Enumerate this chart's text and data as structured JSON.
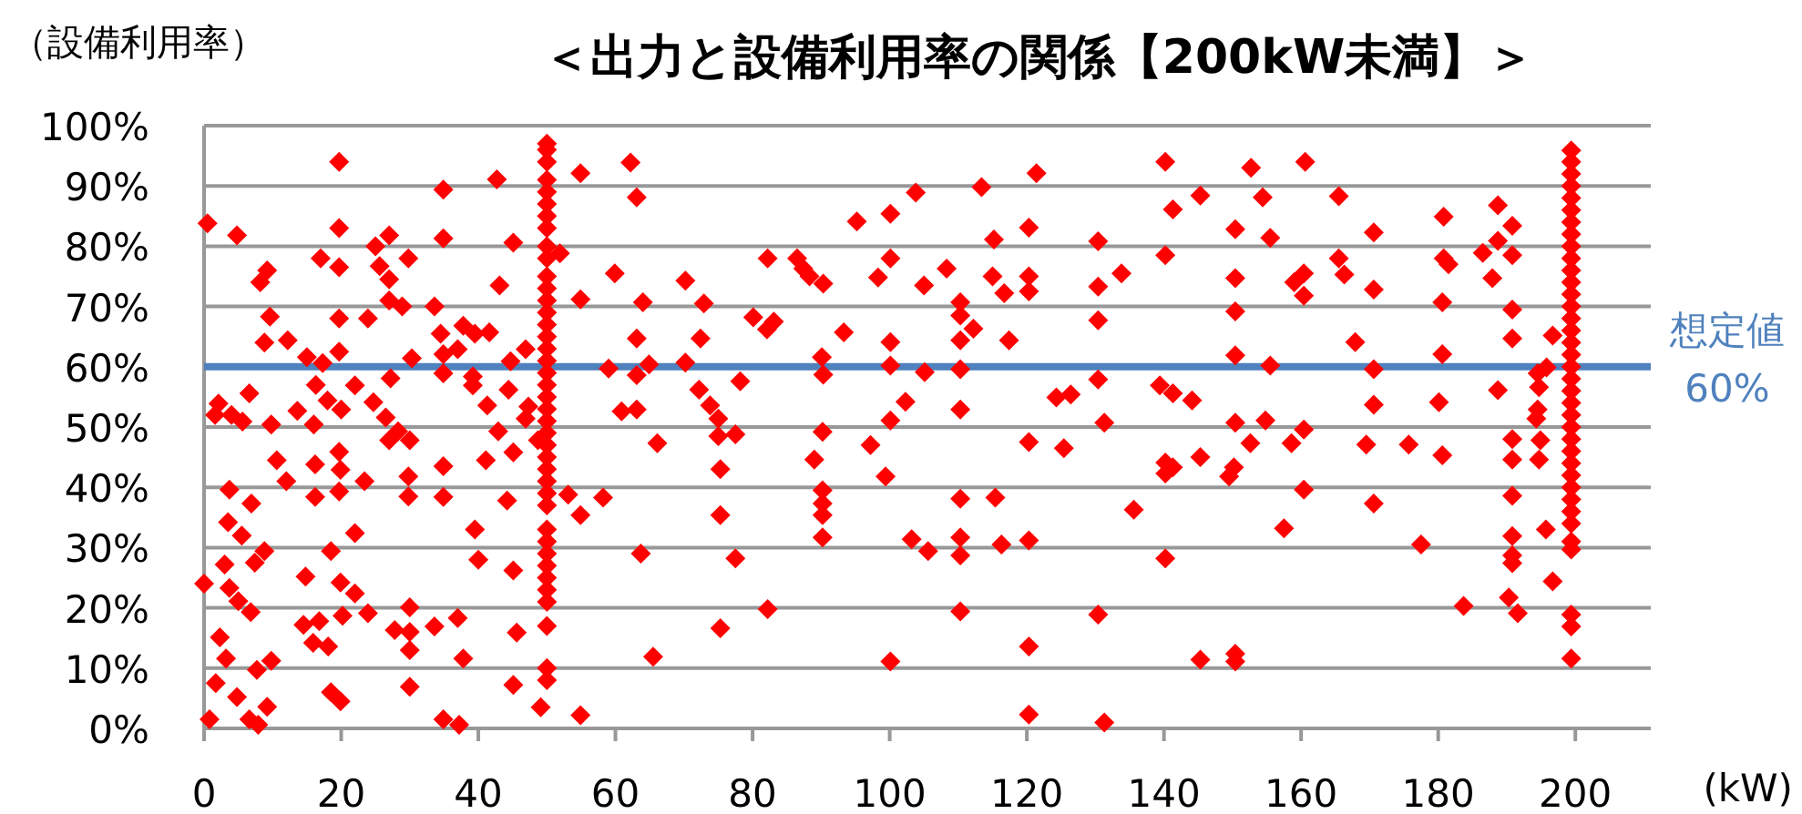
{
  "chart_data": {
    "type": "scatter",
    "title": "＜出力と設備利用率の関係【200kW未満】＞",
    "ylabel": "（設備利用率）",
    "xlabel": "(kW)",
    "color": "#ff0000",
    "marker": "diamond",
    "grid": "y",
    "xlim": [
      0,
      211
    ],
    "ylim": [
      0,
      100
    ],
    "xticks": [
      0,
      20,
      40,
      60,
      80,
      100,
      120,
      140,
      160,
      180,
      200
    ],
    "yticks": [
      {
        "value": 0,
        "label": "0%"
      },
      {
        "value": 10,
        "label": "10%"
      },
      {
        "value": 20,
        "label": "20%"
      },
      {
        "value": 30,
        "label": "30%"
      },
      {
        "value": 40,
        "label": "40%"
      },
      {
        "value": 50,
        "label": "50%"
      },
      {
        "value": 60,
        "label": "60%"
      },
      {
        "value": 70,
        "label": "70%"
      },
      {
        "value": 80,
        "label": "80%"
      },
      {
        "value": 90,
        "label": "90%"
      },
      {
        "value": 100,
        "label": "100%"
      }
    ],
    "ref_lines": [
      {
        "axis": "y",
        "value": 60,
        "label": "想定値\n60%",
        "color": "#4f81bd"
      }
    ],
    "x": [
      0.5,
      4.8,
      19.7,
      19.7,
      17,
      9.2,
      8.2,
      9.6,
      8.8,
      12.2,
      15,
      17.3,
      19.7,
      19.7,
      19.7,
      16.3,
      18,
      20,
      2.1,
      1.6,
      4,
      6.6,
      5.6,
      9.8,
      13.6,
      16,
      10.6,
      12,
      3.7,
      6.9,
      3.5,
      5.5,
      16.2,
      16.2,
      19.7,
      19.9,
      19.7,
      3,
      8.8,
      7.4,
      0,
      3.7,
      5,
      6.8,
      14.8,
      18.5,
      19.9,
      22,
      22,
      2.3,
      3.2,
      1.7,
      4.8,
      0.8,
      6.6,
      7.9,
      9.2,
      7.7,
      9.8,
      14.5,
      16.8,
      15.9,
      18.1,
      18.5,
      19.9,
      20.2,
      23.9,
      23.4,
      22,
      23.9,
      25,
      27,
      25.6,
      27,
      27,
      28.9,
      29.8,
      27.2,
      30.3,
      24.7,
      26.5,
      28.3,
      27,
      30,
      29.8,
      29.8,
      27.8,
      30,
      30,
      30,
      30,
      33.6,
      34.9,
      34.9,
      34.5,
      34.9,
      34.9,
      34.9,
      34.9,
      33.6,
      37,
      37.8,
      34.9,
      37.2,
      37,
      37.8,
      39.2,
      39.2,
      39.5,
      41.6,
      42.7,
      43.1,
      45.1,
      41.3,
      44.4,
      44.7,
      42.9,
      45.1,
      41.1,
      44.2,
      39.5,
      40,
      45.1,
      45.6,
      45.1,
      49.1,
      46.9,
      47.3,
      46.9,
      48.7,
      50,
      50,
      50,
      50,
      50,
      50,
      50,
      50,
      50,
      50,
      50,
      50,
      50,
      50,
      50,
      50,
      50,
      50,
      50,
      50,
      50,
      50,
      50,
      50,
      50,
      50,
      50,
      50,
      50,
      50,
      50,
      50,
      50,
      50,
      50,
      50,
      50,
      50,
      50,
      50,
      54.9,
      62.2,
      63.1,
      51.9,
      59.9,
      54.9,
      64,
      70.2,
      72.9,
      63.1,
      72.4,
      59,
      63.1,
      64.9,
      70.2,
      60.9,
      63.1,
      66.1,
      72.2,
      73.8,
      75,
      75,
      77.5,
      78.2,
      75.3,
      53.1,
      54.9,
      58.2,
      75.3,
      63.7,
      77.5,
      75.3,
      82.2,
      65.5,
      54.9,
      80.1,
      82.2,
      83.1,
      82.1,
      86.5,
      87.4,
      88.3,
      90.3,
      93.3,
      95.2,
      98.3,
      100.1,
      100.1,
      103.8,
      105,
      100.1,
      100.1,
      90.1,
      90.3,
      105.1,
      102.3,
      100.1,
      90.2,
      89,
      97.2,
      99.4,
      90.2,
      90.2,
      90.2,
      90.2,
      103.2,
      105.6,
      100.1,
      113.4,
      121.4,
      115.2,
      120.3,
      108.3,
      115,
      116.7,
      120.3,
      120.3,
      110.3,
      110.3,
      110.3,
      112.2,
      117.4,
      110.3,
      110.3,
      120.3,
      125.4,
      124.3,
      126.4,
      130.4,
      130.4,
      133.8,
      130.4,
      130.4,
      131.3,
      135.6,
      110.3,
      115.4,
      110.3,
      110.3,
      116.3,
      120.3,
      110.3,
      130.4,
      120.3,
      120.3,
      131.3,
      140.2,
      141.3,
      140.2,
      145.3,
      152.7,
      154.4,
      150.4,
      155.5,
      150.4,
      150.4,
      150.4,
      155.5,
      139.4,
      141.3,
      144.1,
      150.4,
      154.8,
      152.6,
      140.2,
      141.3,
      140.2,
      145.3,
      150.2,
      149.5,
      157.5,
      140.2,
      145.3,
      150.4,
      150.4,
      160.6,
      165.5,
      170.6,
      180.8,
      188.7,
      190.8,
      188.7,
      186.5,
      190.8,
      187.9,
      165.5,
      166.3,
      160.4,
      159,
      160.4,
      170.6,
      180.8,
      181.5,
      180.6,
      190.8,
      190.8,
      167.9,
      180.6,
      170.6,
      170.6,
      180.1,
      188.7,
      196.7,
      160.4,
      158.6,
      169.5,
      175.7,
      180.6,
      190.8,
      190.8,
      160.4,
      170.6,
      177.5,
      190.8,
      190.8,
      190.8,
      190.8,
      190.3,
      191.6,
      183.7,
      194.5,
      194.7,
      194.5,
      194.3,
      194.9,
      194.7,
      195.7,
      196.7,
      195.8,
      199.4,
      199.4,
      199.4,
      199.4,
      199.4,
      199.4,
      199.4,
      199.4,
      199.4,
      199.4,
      199.4,
      199.4,
      199.4,
      199.4,
      199.4,
      199.4,
      199.4,
      199.4,
      199.4,
      199.4,
      199.4,
      199.4,
      199.4,
      199.4,
      199.4,
      199.4,
      199.4,
      199.4,
      199.4,
      199.4,
      199.4,
      199.4,
      199.4,
      199.4,
      199.4,
      199.4,
      199.4
    ],
    "values": [
      83.8,
      81.8,
      94,
      83,
      78,
      76,
      74,
      68.3,
      64,
      64.4,
      61.6,
      60.6,
      62.5,
      68,
      76.5,
      57,
      54.4,
      52.9,
      53.9,
      52,
      52,
      55.6,
      50.9,
      50.4,
      52.7,
      50.4,
      44.5,
      41,
      39.6,
      37.3,
      34.2,
      32,
      43.8,
      38.4,
      45.9,
      42.9,
      39.3,
      27.2,
      29.4,
      27.5,
      24,
      23.3,
      21.1,
      19.3,
      25.2,
      29.4,
      24.2,
      22.4,
      32.4,
      15.1,
      11.6,
      7.5,
      5.2,
      1.5,
      1.5,
      0.6,
      3.6,
      9.7,
      11.2,
      17.2,
      17.8,
      14.2,
      13.6,
      6,
      4.5,
      18.7,
      19.1,
      41,
      56.9,
      68,
      80,
      81.8,
      76.7,
      74.5,
      71,
      70,
      78,
      58.1,
      61.4,
      54.1,
      51.6,
      49.3,
      47.8,
      47.8,
      41.8,
      38.5,
      16.3,
      20.1,
      16,
      13,
      6.9,
      70,
      89.4,
      81.3,
      65.5,
      62.1,
      58.9,
      43.5,
      38.4,
      16.9,
      18.3,
      11.6,
      1.5,
      0.6,
      62.9,
      66.8,
      58.4,
      56.9,
      65.5,
      65.7,
      91.1,
      73.5,
      80.6,
      53.6,
      56.2,
      60.9,
      49.3,
      45.8,
      44.5,
      37.8,
      33,
      28,
      26.2,
      15.9,
      7.2,
      3.5,
      62.9,
      53.4,
      51.4,
      47.8,
      97,
      96,
      94,
      91,
      89,
      87,
      85,
      83,
      80,
      78,
      75,
      73,
      71,
      69,
      67,
      65,
      63,
      61,
      59,
      57,
      55,
      53,
      51,
      49,
      47,
      45,
      43,
      41,
      39,
      37,
      33,
      31,
      29,
      27,
      25,
      23,
      21,
      17,
      10,
      8,
      92.1,
      93.9,
      88.1,
      78.8,
      75.5,
      71.2,
      70.7,
      74.3,
      70.5,
      64.7,
      64.7,
      59.7,
      58.6,
      60.4,
      60.7,
      52.6,
      52.9,
      47.3,
      56.2,
      53.6,
      51.4,
      48.5,
      48.8,
      57.6,
      43,
      38.8,
      35.4,
      38.3,
      35.4,
      29,
      28.2,
      16.6,
      19.8,
      11.9,
      2.2,
      68.2,
      78,
      67.5,
      66.2,
      78,
      76.3,
      75,
      73.8,
      65.7,
      84.1,
      74.8,
      85.4,
      78,
      88.9,
      73.5,
      64.1,
      60.2,
      61.6,
      58.7,
      59.1,
      54.2,
      51.1,
      49.2,
      44.6,
      47,
      41.8,
      39.5,
      37.3,
      35.4,
      31.7,
      31.4,
      29.4,
      11.1,
      89.8,
      92.1,
      81.1,
      83.1,
      76.3,
      75,
      72.2,
      75,
      72.5,
      70.7,
      68.5,
      64.4,
      66.3,
      64.4,
      59.6,
      52.9,
      47.5,
      46.5,
      54.9,
      55.4,
      80.8,
      73.3,
      75.5,
      67.7,
      57.9,
      50.7,
      36.3,
      38.1,
      38.3,
      31.7,
      28.7,
      30.5,
      31.2,
      19.4,
      18.9,
      13.6,
      2.3,
      1,
      94,
      86.1,
      78.5,
      88.4,
      93,
      88.1,
      82.8,
      81.4,
      74.7,
      69.2,
      61.9,
      60.2,
      56.9,
      55.6,
      54.4,
      50.7,
      51.1,
      47.3,
      44.1,
      43.3,
      42.3,
      45,
      43.3,
      41.8,
      33.2,
      28.2,
      11.4,
      12.4,
      11.1,
      94,
      88.3,
      82.3,
      84.9,
      86.8,
      83.4,
      80.9,
      78.9,
      78.5,
      74.7,
      78,
      75.3,
      75.5,
      74,
      71.8,
      72.8,
      78,
      77,
      70.7,
      69.5,
      64.7,
      64.1,
      62.1,
      59.6,
      53.7,
      54.1,
      56.1,
      65.2,
      49.6,
      47.3,
      47.1,
      47.1,
      45.3,
      48,
      44.6,
      39.6,
      37.3,
      30.5,
      38.6,
      31.9,
      28.7,
      27.4,
      21.7,
      19.1,
      20.3,
      58.9,
      56.6,
      52.9,
      51.4,
      47.8,
      44.6,
      33,
      24.4,
      59.9,
      95.9,
      94,
      92,
      90,
      88,
      86,
      84,
      82,
      80,
      78,
      76,
      74,
      72,
      70,
      68,
      66,
      64,
      62,
      60,
      58,
      56,
      54,
      52,
      50,
      48,
      46,
      44,
      42,
      40,
      38,
      36,
      34,
      31,
      29.7,
      18.9,
      16.9,
      11.6
    ]
  }
}
